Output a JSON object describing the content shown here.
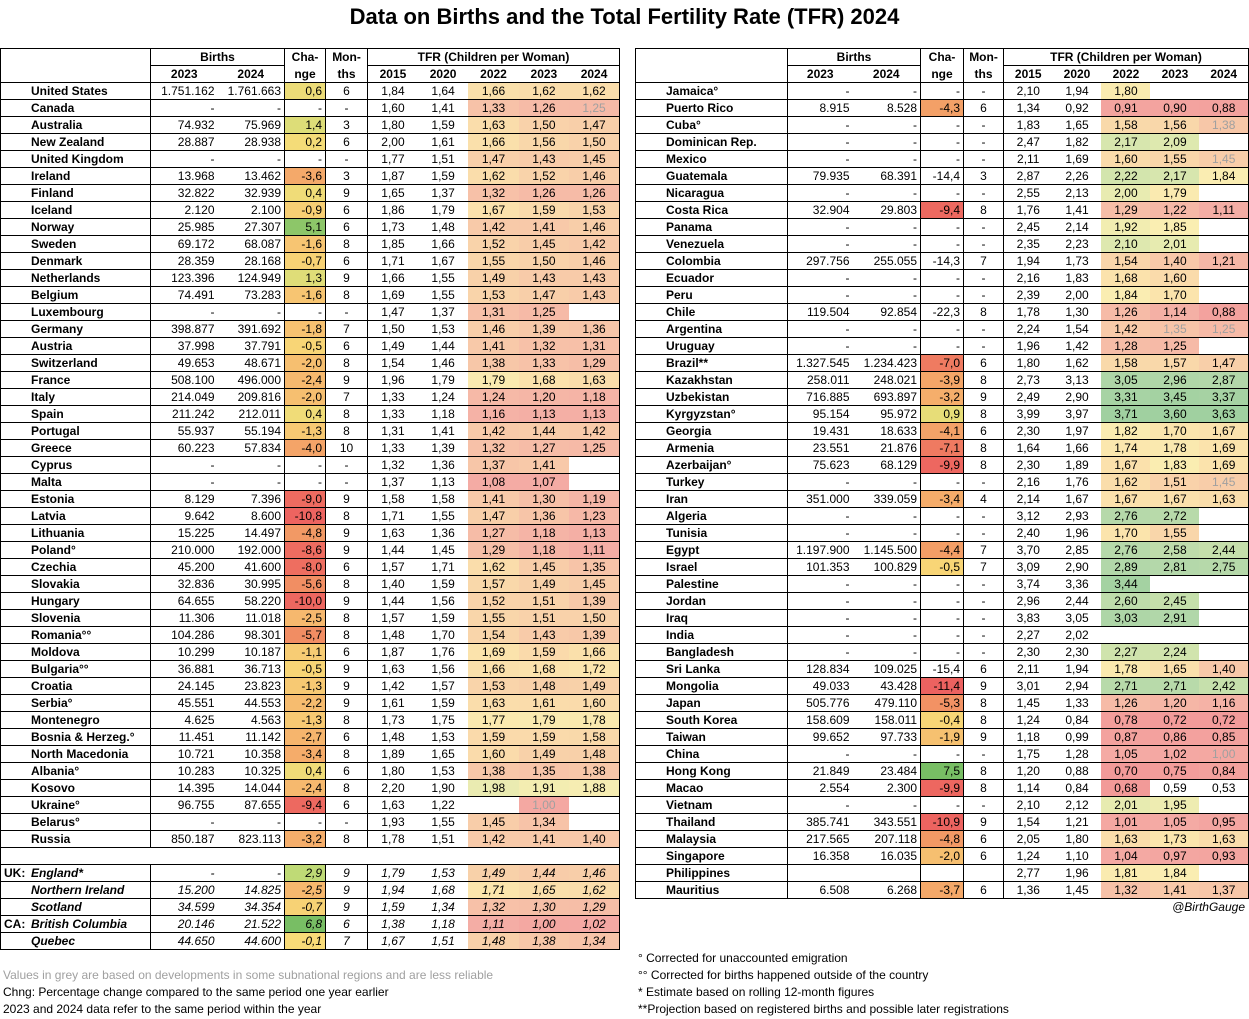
{
  "title": "Data on Births and the Total Fertility Rate (TFR) 2024",
  "headers": {
    "births": "Births",
    "change1": "Cha-",
    "change2": "nge",
    "months1": "Mon-",
    "months2": "ths",
    "tfr": "TFR (Children per Woman)",
    "births_years": [
      "2023",
      "2024"
    ],
    "tfr_years": [
      "2015",
      "2020",
      "2022",
      "2023",
      "2024"
    ]
  },
  "left": {
    "rows": [
      [
        "United States",
        "1.751.162",
        "1.761.663",
        "0,6",
        "6",
        "1,84",
        "1,64",
        "1,66",
        "1,62",
        "1,62"
      ],
      [
        "Canada",
        "-",
        "-",
        "-",
        "-",
        "1,60",
        "1,41",
        "1,33",
        "1,26",
        "1,25"
      ],
      [
        "Australia",
        "74.932",
        "75.969",
        "1,4",
        "3",
        "1,80",
        "1,59",
        "1,63",
        "1,50",
        "1,47"
      ],
      [
        "New Zealand",
        "28.887",
        "28.938",
        "0,2",
        "6",
        "2,00",
        "1,61",
        "1,66",
        "1,56",
        "1,50"
      ],
      [
        "United Kingdom",
        "-",
        "-",
        "-",
        "-",
        "1,77",
        "1,51",
        "1,47",
        "1,43",
        "1,45"
      ],
      [
        "Ireland",
        "13.968",
        "13.462",
        "-3,6",
        "3",
        "1,87",
        "1,59",
        "1,62",
        "1,52",
        "1,46"
      ],
      [
        "Finland",
        "32.822",
        "32.939",
        "0,4",
        "9",
        "1,65",
        "1,37",
        "1,32",
        "1,26",
        "1,26"
      ],
      [
        "Iceland",
        "2.120",
        "2.100",
        "-0,9",
        "6",
        "1,86",
        "1,79",
        "1,67",
        "1,59",
        "1,53"
      ],
      [
        "Norway",
        "25.985",
        "27.307",
        "5,1",
        "6",
        "1,73",
        "1,48",
        "1,42",
        "1,41",
        "1,46"
      ],
      [
        "Sweden",
        "69.172",
        "68.087",
        "-1,6",
        "8",
        "1,85",
        "1,66",
        "1,52",
        "1,45",
        "1,42"
      ],
      [
        "Denmark",
        "28.359",
        "28.168",
        "-0,7",
        "6",
        "1,71",
        "1,67",
        "1,55",
        "1,50",
        "1,46"
      ],
      [
        "Netherlands",
        "123.396",
        "124.949",
        "1,3",
        "9",
        "1,66",
        "1,55",
        "1,49",
        "1,43",
        "1,43"
      ],
      [
        "Belgium",
        "74.491",
        "73.283",
        "-1,6",
        "8",
        "1,69",
        "1,55",
        "1,53",
        "1,47",
        "1,43"
      ],
      [
        "Luxembourg",
        "-",
        "-",
        "-",
        "-",
        "1,47",
        "1,37",
        "1,31",
        "1,25",
        ""
      ],
      [
        "Germany",
        "398.877",
        "391.692",
        "-1,8",
        "7",
        "1,50",
        "1,53",
        "1,46",
        "1,39",
        "1,36"
      ],
      [
        "Austria",
        "37.998",
        "37.791",
        "-0,5",
        "6",
        "1,49",
        "1,44",
        "1,41",
        "1,32",
        "1,31"
      ],
      [
        "Switzerland",
        "49.653",
        "48.671",
        "-2,0",
        "8",
        "1,54",
        "1,46",
        "1,38",
        "1,33",
        "1,29"
      ],
      [
        "France",
        "508.100",
        "496.000",
        "-2,4",
        "9",
        "1,96",
        "1,79",
        "1,79",
        "1,68",
        "1,63"
      ],
      [
        "Italy",
        "214.049",
        "209.816",
        "-2,0",
        "7",
        "1,33",
        "1,24",
        "1,24",
        "1,20",
        "1,18"
      ],
      [
        "Spain",
        "211.242",
        "212.011",
        "0,4",
        "8",
        "1,33",
        "1,18",
        "1,16",
        "1,13",
        "1,13"
      ],
      [
        "Portugal",
        "55.937",
        "55.194",
        "-1,3",
        "8",
        "1,31",
        "1,41",
        "1,42",
        "1,44",
        "1,42"
      ],
      [
        "Greece",
        "60.223",
        "57.834",
        "-4,0",
        "10",
        "1,33",
        "1,39",
        "1,32",
        "1,27",
        "1,25"
      ],
      [
        "Cyprus",
        "-",
        "-",
        "-",
        "-",
        "1,32",
        "1,36",
        "1,37",
        "1,41",
        ""
      ],
      [
        "Malta",
        "-",
        "-",
        "-",
        "-",
        "1,37",
        "1,13",
        "1,08",
        "1,07",
        ""
      ],
      [
        "Estonia",
        "8.129",
        "7.396",
        "-9,0",
        "9",
        "1,58",
        "1,58",
        "1,41",
        "1,30",
        "1,19"
      ],
      [
        "Latvia",
        "9.642",
        "8.600",
        "-10,8",
        "8",
        "1,71",
        "1,55",
        "1,47",
        "1,36",
        "1,23"
      ],
      [
        "Lithuania",
        "15.225",
        "14.497",
        "-4,8",
        "9",
        "1,63",
        "1,36",
        "1,27",
        "1,18",
        "1,13"
      ],
      [
        "Poland°",
        "210.000",
        "192.000",
        "-8,6",
        "9",
        "1,44",
        "1,45",
        "1,29",
        "1,18",
        "1,11"
      ],
      [
        "Czechia",
        "45.200",
        "41.600",
        "-8,0",
        "6",
        "1,57",
        "1,71",
        "1,62",
        "1,45",
        "1,35"
      ],
      [
        "Slovakia",
        "32.836",
        "30.995",
        "-5,6",
        "8",
        "1,40",
        "1,59",
        "1,57",
        "1,49",
        "1,45"
      ],
      [
        "Hungary",
        "64.655",
        "58.220",
        "-10,0",
        "9",
        "1,44",
        "1,56",
        "1,52",
        "1,51",
        "1,39"
      ],
      [
        "Slovenia",
        "11.306",
        "11.018",
        "-2,5",
        "8",
        "1,57",
        "1,59",
        "1,55",
        "1,51",
        "1,50"
      ],
      [
        "Romania°°",
        "104.286",
        "98.301",
        "-5,7",
        "8",
        "1,48",
        "1,70",
        "1,54",
        "1,43",
        "1,39"
      ],
      [
        "Moldova",
        "10.299",
        "10.187",
        "-1,1",
        "6",
        "1,87",
        "1,76",
        "1,69",
        "1,59",
        "1,66"
      ],
      [
        "Bulgaria°°",
        "36.881",
        "36.713",
        "-0,5",
        "9",
        "1,63",
        "1,56",
        "1,66",
        "1,68",
        "1,72"
      ],
      [
        "Croatia",
        "24.145",
        "23.823",
        "-1,3",
        "9",
        "1,42",
        "1,57",
        "1,53",
        "1,48",
        "1,49"
      ],
      [
        "Serbia°",
        "45.551",
        "44.553",
        "-2,2",
        "9",
        "1,61",
        "1,59",
        "1,63",
        "1,61",
        "1,60"
      ],
      [
        "Montenegro",
        "4.625",
        "4.563",
        "-1,3",
        "8",
        "1,73",
        "1,75",
        "1,77",
        "1,79",
        "1,78"
      ],
      [
        "Bosnia & Herzeg.°",
        "11.451",
        "11.142",
        "-2,7",
        "6",
        "1,48",
        "1,53",
        "1,59",
        "1,59",
        "1,58"
      ],
      [
        "North Macedonia",
        "10.721",
        "10.358",
        "-3,4",
        "8",
        "1,89",
        "1,65",
        "1,60",
        "1,49",
        "1,48"
      ],
      [
        "Albania°",
        "10.283",
        "10.325",
        "0,4",
        "6",
        "1,80",
        "1,53",
        "1,38",
        "1,35",
        "1,38"
      ],
      [
        "Kosovo",
        "14.395",
        "14.044",
        "-2,4",
        "8",
        "2,20",
        "1,90",
        "1,98",
        "1,91",
        "1,88"
      ],
      [
        "Ukraine°",
        "96.755",
        "87.655",
        "-9,4",
        "6",
        "1,63",
        "1,22",
        "",
        "1,00",
        ""
      ],
      [
        "Belarus°",
        "-",
        "-",
        "-",
        "-",
        "1,93",
        "1,55",
        "1,45",
        "1,34",
        ""
      ],
      [
        "Russia",
        "850.187",
        "823.113",
        "-3,2",
        "8",
        "1,78",
        "1,51",
        "1,42",
        "1,41",
        "1,40"
      ]
    ],
    "grey": {
      "Canada": [
        4
      ],
      "Ukraine°": [
        3
      ]
    },
    "subnational": [
      {
        "prefix": "UK:",
        "row": [
          "England*",
          "-",
          "-",
          "2,9",
          "9",
          "1,79",
          "1,53",
          "1,49",
          "1,44",
          "1,46"
        ]
      },
      {
        "prefix": "",
        "row": [
          "Northern Ireland",
          "15.200",
          "14.825",
          "-2,5",
          "9",
          "1,94",
          "1,68",
          "1,71",
          "1,65",
          "1,62"
        ]
      },
      {
        "prefix": "",
        "row": [
          "Scotland",
          "34.599",
          "34.354",
          "-0,7",
          "9",
          "1,59",
          "1,34",
          "1,32",
          "1,30",
          "1,29"
        ]
      },
      {
        "prefix": "CA:",
        "row": [
          "British Columbia",
          "20.146",
          "21.522",
          "6,8",
          "6",
          "1,38",
          "1,18",
          "1,11",
          "1,00",
          "1,02"
        ]
      },
      {
        "prefix": "",
        "row": [
          "Quebec",
          "44.650",
          "44.600",
          "-0,1",
          "7",
          "1,67",
          "1,51",
          "1,48",
          "1,38",
          "1,34"
        ]
      }
    ]
  },
  "right": {
    "rows": [
      [
        "Jamaica°",
        "-",
        "-",
        "-",
        "-",
        "2,10",
        "1,94",
        "1,80",
        "",
        ""
      ],
      [
        "Puerto Rico",
        "8.915",
        "8.528",
        "-4,3",
        "6",
        "1,34",
        "0,92",
        "0,91",
        "0,90",
        "0,88"
      ],
      [
        "Cuba°",
        "-",
        "-",
        "-",
        "-",
        "1,83",
        "1,65",
        "1,58",
        "1,56",
        "1,38"
      ],
      [
        "Dominican Rep.",
        "-",
        "-",
        "-",
        "-",
        "2,47",
        "1,82",
        "2,17",
        "2,09",
        ""
      ],
      [
        "Mexico",
        "-",
        "-",
        "-",
        "-",
        "2,11",
        "1,69",
        "1,60",
        "1,55",
        "1,45"
      ],
      [
        "Guatemala",
        "79.935",
        "68.391",
        "-14,4",
        "3",
        "2,87",
        "2,26",
        "2,22",
        "2,17",
        "1,84"
      ],
      [
        "Nicaragua",
        "-",
        "-",
        "-",
        "-",
        "2,55",
        "2,13",
        "2,00",
        "1,79",
        ""
      ],
      [
        "Costa Rica",
        "32.904",
        "29.803",
        "-9,4",
        "8",
        "1,76",
        "1,41",
        "1,29",
        "1,22",
        "1,11"
      ],
      [
        "Panama",
        "-",
        "-",
        "-",
        "-",
        "2,45",
        "2,14",
        "1,92",
        "1,85",
        ""
      ],
      [
        "Venezuela",
        "-",
        "-",
        "-",
        "-",
        "2,35",
        "2,23",
        "2,10",
        "2,01",
        ""
      ],
      [
        "Colombia",
        "297.756",
        "255.055",
        "-14,3",
        "7",
        "1,94",
        "1,73",
        "1,54",
        "1,40",
        "1,21"
      ],
      [
        "Ecuador",
        "-",
        "-",
        "-",
        "-",
        "2,16",
        "1,83",
        "1,68",
        "1,60",
        ""
      ],
      [
        "Peru",
        "-",
        "-",
        "-",
        "-",
        "2,39",
        "2,00",
        "1,84",
        "1,70",
        ""
      ],
      [
        "Chile",
        "119.504",
        "92.854",
        "-22,3",
        "8",
        "1,78",
        "1,30",
        "1,26",
        "1,14",
        "0,88"
      ],
      [
        "Argentina",
        "-",
        "-",
        "-",
        "-",
        "2,24",
        "1,54",
        "1,42",
        "1,35",
        "1,25"
      ],
      [
        "Uruguay",
        "-",
        "-",
        "-",
        "-",
        "1,96",
        "1,42",
        "1,28",
        "1,25",
        ""
      ],
      [
        "Brazil**",
        "1.327.545",
        "1.234.423",
        "-7,0",
        "6",
        "1,80",
        "1,62",
        "1,58",
        "1,57",
        "1,47"
      ],
      [
        "Kazakhstan",
        "258.011",
        "248.021",
        "-3,9",
        "8",
        "2,73",
        "3,13",
        "3,05",
        "2,96",
        "2,87"
      ],
      [
        "Uzbekistan",
        "716.885",
        "693.897",
        "-3,2",
        "9",
        "2,49",
        "2,90",
        "3,31",
        "3,45",
        "3,37"
      ],
      [
        "Kyrgyzstan°",
        "95.154",
        "95.972",
        "0,9",
        "8",
        "3,99",
        "3,97",
        "3,71",
        "3,60",
        "3,63"
      ],
      [
        "Georgia",
        "19.431",
        "18.633",
        "-4,1",
        "6",
        "2,30",
        "1,97",
        "1,82",
        "1,70",
        "1,67"
      ],
      [
        "Armenia",
        "23.551",
        "21.876",
        "-7,1",
        "8",
        "1,64",
        "1,66",
        "1,74",
        "1,78",
        "1,69"
      ],
      [
        "Azerbaijan°",
        "75.623",
        "68.129",
        "-9,9",
        "8",
        "2,30",
        "1,89",
        "1,67",
        "1,83",
        "1,69"
      ],
      [
        "Turkey",
        "-",
        "-",
        "-",
        "-",
        "2,16",
        "1,76",
        "1,62",
        "1,51",
        "1,45"
      ],
      [
        "Iran",
        "351.000",
        "339.059",
        "-3,4",
        "4",
        "2,14",
        "1,67",
        "1,67",
        "1,67",
        "1,63"
      ],
      [
        "Algeria",
        "-",
        "-",
        "-",
        "-",
        "3,12",
        "2,93",
        "2,76",
        "2,72",
        ""
      ],
      [
        "Tunisia",
        "-",
        "-",
        "-",
        "-",
        "2,40",
        "1,96",
        "1,70",
        "1,55",
        ""
      ],
      [
        "Egypt",
        "1.197.900",
        "1.145.500",
        "-4,4",
        "7",
        "3,70",
        "2,85",
        "2,76",
        "2,58",
        "2,44"
      ],
      [
        "Israel",
        "101.353",
        "100.829",
        "-0,5",
        "7",
        "3,09",
        "2,90",
        "2,89",
        "2,81",
        "2,75"
      ],
      [
        "Palestine",
        "-",
        "-",
        "-",
        "-",
        "3,74",
        "3,36",
        "3,44",
        "",
        ""
      ],
      [
        "Jordan",
        "-",
        "-",
        "-",
        "-",
        "2,96",
        "2,44",
        "2,60",
        "2,45",
        ""
      ],
      [
        "Iraq",
        "-",
        "-",
        "-",
        "-",
        "3,83",
        "3,05",
        "3,03",
        "2,91",
        ""
      ],
      [
        "India",
        "-",
        "-",
        "-",
        "-",
        "2,27",
        "2,02",
        "",
        "",
        ""
      ],
      [
        "Bangladesh",
        "-",
        "-",
        "-",
        "-",
        "2,30",
        "2,30",
        "2,27",
        "2,24",
        ""
      ],
      [
        "Sri Lanka",
        "128.834",
        "109.025",
        "-15,4",
        "6",
        "2,11",
        "1,94",
        "1,78",
        "1,65",
        "1,40"
      ],
      [
        "Mongolia",
        "49.033",
        "43.428",
        "-11,4",
        "9",
        "3,01",
        "2,94",
        "2,71",
        "2,71",
        "2,42"
      ],
      [
        "Japan",
        "505.776",
        "479.110",
        "-5,3",
        "8",
        "1,45",
        "1,33",
        "1,26",
        "1,20",
        "1,16"
      ],
      [
        "South Korea",
        "158.609",
        "158.011",
        "-0,4",
        "8",
        "1,24",
        "0,84",
        "0,78",
        "0,72",
        "0,72"
      ],
      [
        "Taiwan",
        "99.652",
        "97.733",
        "-1,9",
        "9",
        "1,18",
        "0,99",
        "0,87",
        "0,86",
        "0,85"
      ],
      [
        "China",
        "-",
        "-",
        "-",
        "-",
        "1,75",
        "1,28",
        "1,05",
        "1,02",
        "1,00"
      ],
      [
        "Hong Kong",
        "21.849",
        "23.484",
        "7,5",
        "8",
        "1,20",
        "0,88",
        "0,70",
        "0,75",
        "0,84"
      ],
      [
        "Macao",
        "2.554",
        "2.300",
        "-9,9",
        "8",
        "1,14",
        "0,84",
        "0,68",
        "0,59",
        "0,53"
      ],
      [
        "Vietnam",
        "-",
        "-",
        "-",
        "-",
        "2,10",
        "2,12",
        "2,01",
        "1,95",
        ""
      ],
      [
        "Thailand",
        "385.741",
        "343.551",
        "-10,9",
        "9",
        "1,54",
        "1,21",
        "1,01",
        "1,05",
        "0,95"
      ],
      [
        "Malaysia",
        "217.565",
        "207.118",
        "-4,8",
        "6",
        "2,05",
        "1,80",
        "1,63",
        "1,73",
        "1,63"
      ],
      [
        "Singapore",
        "16.358",
        "16.035",
        "-2,0",
        "6",
        "1,24",
        "1,10",
        "1,04",
        "0,97",
        "0,93"
      ],
      [
        "Philippines",
        "",
        "",
        "",
        "",
        "2,77",
        "1,96",
        "1,81",
        "1,84",
        ""
      ],
      [
        "Mauritius",
        "6.508",
        "6.268",
        "-3,7",
        "6",
        "1,36",
        "1,45",
        "1,32",
        "1,41",
        "1,37"
      ]
    ],
    "grey": {
      "Cuba°": [
        4
      ],
      "Mexico": [
        4
      ],
      "Argentina": [
        3,
        4
      ],
      "Turkey": [
        4
      ],
      "China": [
        4
      ]
    }
  },
  "credit": "@BirthGauge",
  "notes_left": [
    "Values in grey are based on developments in some subnational regions and are less reliable",
    "Chng: Percentage change compared to the same period one year earlier",
    "2023 and 2024 data refer to the same period within the year"
  ],
  "notes_right": [
    "° Corrected for unaccounted emigration",
    "°° Corrected for births happened outside of the country",
    "* Estimate based on rolling 12-month figures",
    "**Projection based on registered births and possible later registrations"
  ]
}
